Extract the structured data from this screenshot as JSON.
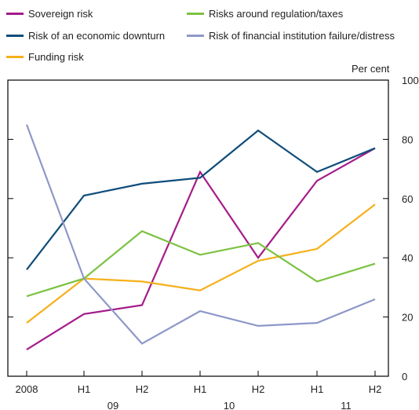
{
  "chart_data": {
    "type": "line",
    "x": [
      "2008",
      "H1",
      "H2",
      "H1",
      "H2",
      "H1",
      "H2"
    ],
    "x_groups": [
      "09",
      "10",
      "11"
    ],
    "ylabel": "Per cent",
    "ylim": [
      0,
      100
    ],
    "yticks": [
      0,
      20,
      40,
      60,
      80,
      100
    ],
    "grid": false,
    "legend_position": "top",
    "series": [
      {
        "name": "Sovereign risk",
        "color": "#a51c8a",
        "values": [
          9,
          21,
          24,
          69,
          40,
          66,
          77
        ]
      },
      {
        "name": "Risk of an economic downturn",
        "color": "#0f4d7a",
        "values": [
          36,
          61,
          65,
          67,
          83,
          69,
          77
        ]
      },
      {
        "name": "Funding risk",
        "color": "#f5b01a",
        "values": [
          18,
          33,
          32,
          29,
          39,
          43,
          58
        ]
      },
      {
        "name": "Risks around regulation/taxes",
        "color": "#7cc242",
        "values": [
          27,
          33,
          49,
          41,
          45,
          32,
          38
        ]
      },
      {
        "name": "Risk of financial institution failure/distress",
        "color": "#8e98c8",
        "values": [
          85,
          33,
          11,
          22,
          17,
          18,
          26
        ]
      }
    ]
  }
}
